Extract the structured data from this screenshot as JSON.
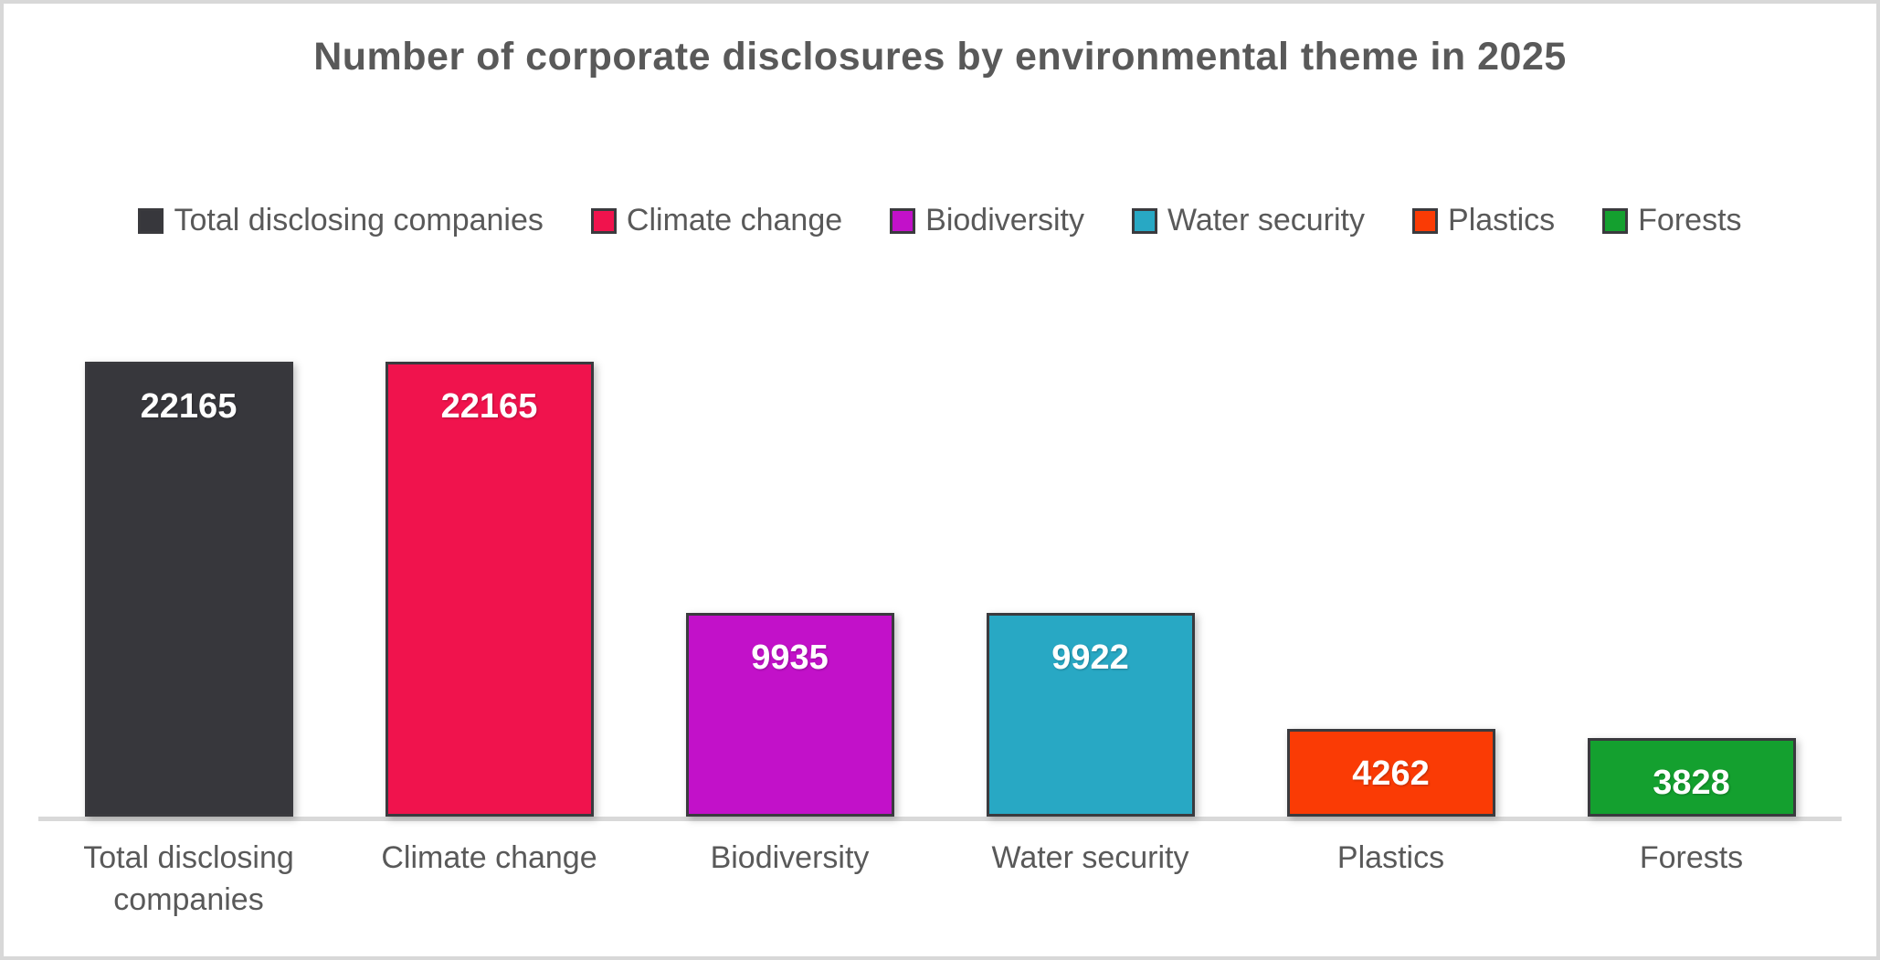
{
  "title": "Number of corporate disclosures by environmental theme in 2025",
  "colors": {
    "background": "#FFFFFF",
    "page_border": "#D8D8D8",
    "title_text": "#595959",
    "axis_text": "#595959",
    "bar_border": "#3A3A3E",
    "axis_line": "#D9D9D9",
    "value_label_text": "#FFFFFF"
  },
  "chart_data": {
    "type": "bar",
    "title": "Number of corporate disclosures by environmental theme in 2025",
    "categories": [
      "Total disclosing companies",
      "Climate change",
      "Biodiversity",
      "Water security",
      "Plastics",
      "Forests"
    ],
    "values": [
      22165,
      22165,
      9935,
      9922,
      4262,
      3828
    ],
    "data_labels": [
      "22165",
      "22165",
      "9935",
      "9922",
      "4262",
      "3828"
    ],
    "bar_colors": [
      "#37373C",
      "#F0134D",
      "#C211C9",
      "#28A8C4",
      "#FA3B05",
      "#14A02F"
    ],
    "legend": [
      {
        "label": "Total disclosing companies",
        "color": "#37373C"
      },
      {
        "label": "Climate change",
        "color": "#F0134D"
      },
      {
        "label": "Biodiversity",
        "color": "#C211C9"
      },
      {
        "label": "Water security",
        "color": "#28A8C4"
      },
      {
        "label": "Plastics",
        "color": "#FA3B05"
      },
      {
        "label": "Forests",
        "color": "#14A02F"
      }
    ],
    "legend_position": "top",
    "xlabel": "",
    "ylabel": "",
    "ylim": [
      0,
      22165
    ],
    "grid": false,
    "y_axis_visible": false
  }
}
